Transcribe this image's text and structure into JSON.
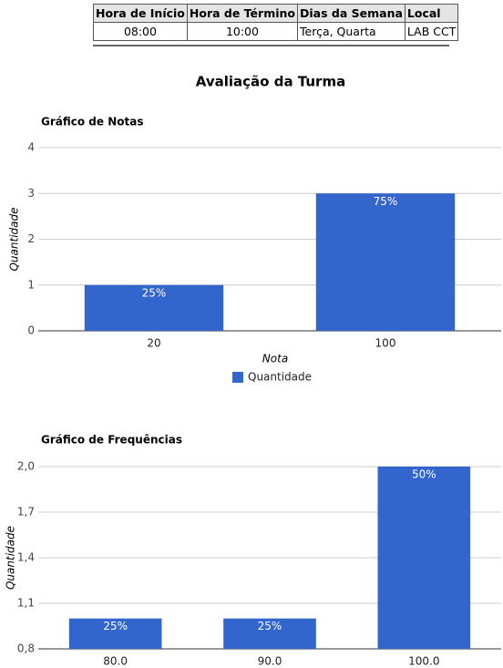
{
  "table": {
    "header": [
      "Hora de Início",
      "Hora de Término",
      "Dias da Semana",
      "Local"
    ],
    "rows": [
      [
        "08:00",
        "10:00",
        "Terça, Quarta",
        "LAB CCT"
      ]
    ]
  },
  "heading": "Avaliação da Turma",
  "chart_data": [
    {
      "type": "bar",
      "title": "Gráfico de Notas",
      "xlabel": "Nota",
      "ylabel": "Quantidade",
      "categories": [
        "20",
        "100"
      ],
      "series": [
        {
          "name": "Quantidade",
          "color": "#3366cc",
          "values": [
            1,
            3
          ]
        }
      ],
      "bar_labels": [
        "25%",
        "75%"
      ],
      "ylim": [
        0,
        4
      ],
      "yticks": [
        0,
        1,
        2,
        3,
        4
      ],
      "grid": true,
      "legend": "bottom"
    },
    {
      "type": "bar",
      "title": "Gráfico de Frequências",
      "ylabel": "Quantidade",
      "categories": [
        "80.0",
        "90.0",
        "100.0"
      ],
      "series": [
        {
          "name": "Quantidade",
          "color": "#3366cc",
          "values": [
            1,
            1,
            2
          ]
        }
      ],
      "bar_labels": [
        "25%",
        "25%",
        "50%"
      ],
      "ylim": [
        0.8,
        2.0
      ],
      "yticks": [
        {
          "value": 0.8,
          "label": "0,8"
        },
        {
          "value": 1.1,
          "label": "1,1"
        },
        {
          "value": 1.4,
          "label": "1,4"
        },
        {
          "value": 1.7,
          "label": "1,7"
        },
        {
          "value": 2.0,
          "label": "2,0"
        }
      ],
      "grid": true
    }
  ]
}
